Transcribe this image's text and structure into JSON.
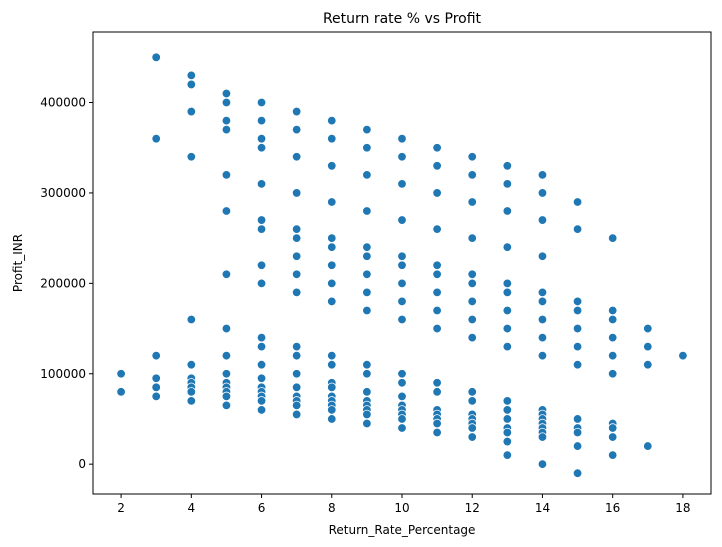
{
  "chart_data": {
    "type": "scatter",
    "title": "Return rate % vs Profit",
    "xlabel": "Return_Rate_Percentage",
    "ylabel": "Profit_INR",
    "xlim": [
      1.2,
      18.8
    ],
    "ylim": [
      -33000,
      478000
    ],
    "xticks": [
      2,
      4,
      6,
      8,
      10,
      12,
      14,
      16,
      18
    ],
    "yticks": [
      0,
      100000,
      200000,
      300000,
      400000
    ],
    "grid": false,
    "marker_color": "#1f77b4",
    "points": [
      [
        2,
        100000
      ],
      [
        2,
        80000
      ],
      [
        3,
        450000
      ],
      [
        3,
        360000
      ],
      [
        3,
        120000
      ],
      [
        3,
        95000
      ],
      [
        3,
        85000
      ],
      [
        3,
        75000
      ],
      [
        4,
        430000
      ],
      [
        4,
        420000
      ],
      [
        4,
        390000
      ],
      [
        4,
        340000
      ],
      [
        4,
        160000
      ],
      [
        4,
        110000
      ],
      [
        4,
        95000
      ],
      [
        4,
        90000
      ],
      [
        4,
        85000
      ],
      [
        4,
        80000
      ],
      [
        4,
        70000
      ],
      [
        5,
        410000
      ],
      [
        5,
        400000
      ],
      [
        5,
        380000
      ],
      [
        5,
        370000
      ],
      [
        5,
        320000
      ],
      [
        5,
        280000
      ],
      [
        5,
        210000
      ],
      [
        5,
        150000
      ],
      [
        5,
        120000
      ],
      [
        5,
        100000
      ],
      [
        5,
        90000
      ],
      [
        5,
        85000
      ],
      [
        5,
        80000
      ],
      [
        5,
        75000
      ],
      [
        5,
        65000
      ],
      [
        6,
        400000
      ],
      [
        6,
        380000
      ],
      [
        6,
        360000
      ],
      [
        6,
        350000
      ],
      [
        6,
        310000
      ],
      [
        6,
        270000
      ],
      [
        6,
        260000
      ],
      [
        6,
        220000
      ],
      [
        6,
        200000
      ],
      [
        6,
        140000
      ],
      [
        6,
        130000
      ],
      [
        6,
        110000
      ],
      [
        6,
        95000
      ],
      [
        6,
        85000
      ],
      [
        6,
        80000
      ],
      [
        6,
        75000
      ],
      [
        6,
        70000
      ],
      [
        6,
        60000
      ],
      [
        7,
        390000
      ],
      [
        7,
        370000
      ],
      [
        7,
        340000
      ],
      [
        7,
        300000
      ],
      [
        7,
        260000
      ],
      [
        7,
        250000
      ],
      [
        7,
        230000
      ],
      [
        7,
        210000
      ],
      [
        7,
        190000
      ],
      [
        7,
        130000
      ],
      [
        7,
        120000
      ],
      [
        7,
        100000
      ],
      [
        7,
        85000
      ],
      [
        7,
        75000
      ],
      [
        7,
        70000
      ],
      [
        7,
        65000
      ],
      [
        7,
        55000
      ],
      [
        8,
        380000
      ],
      [
        8,
        360000
      ],
      [
        8,
        330000
      ],
      [
        8,
        290000
      ],
      [
        8,
        250000
      ],
      [
        8,
        240000
      ],
      [
        8,
        220000
      ],
      [
        8,
        200000
      ],
      [
        8,
        180000
      ],
      [
        8,
        120000
      ],
      [
        8,
        110000
      ],
      [
        8,
        90000
      ],
      [
        8,
        85000
      ],
      [
        8,
        75000
      ],
      [
        8,
        70000
      ],
      [
        8,
        65000
      ],
      [
        8,
        60000
      ],
      [
        8,
        50000
      ],
      [
        9,
        370000
      ],
      [
        9,
        350000
      ],
      [
        9,
        320000
      ],
      [
        9,
        280000
      ],
      [
        9,
        240000
      ],
      [
        9,
        230000
      ],
      [
        9,
        210000
      ],
      [
        9,
        190000
      ],
      [
        9,
        170000
      ],
      [
        9,
        110000
      ],
      [
        9,
        100000
      ],
      [
        9,
        80000
      ],
      [
        9,
        70000
      ],
      [
        9,
        65000
      ],
      [
        9,
        60000
      ],
      [
        9,
        55000
      ],
      [
        9,
        45000
      ],
      [
        10,
        360000
      ],
      [
        10,
        340000
      ],
      [
        10,
        310000
      ],
      [
        10,
        270000
      ],
      [
        10,
        230000
      ],
      [
        10,
        220000
      ],
      [
        10,
        200000
      ],
      [
        10,
        180000
      ],
      [
        10,
        160000
      ],
      [
        10,
        100000
      ],
      [
        10,
        90000
      ],
      [
        10,
        75000
      ],
      [
        10,
        65000
      ],
      [
        10,
        60000
      ],
      [
        10,
        55000
      ],
      [
        10,
        50000
      ],
      [
        10,
        40000
      ],
      [
        11,
        350000
      ],
      [
        11,
        330000
      ],
      [
        11,
        300000
      ],
      [
        11,
        260000
      ],
      [
        11,
        220000
      ],
      [
        11,
        210000
      ],
      [
        11,
        190000
      ],
      [
        11,
        170000
      ],
      [
        11,
        150000
      ],
      [
        11,
        90000
      ],
      [
        11,
        80000
      ],
      [
        11,
        60000
      ],
      [
        11,
        55000
      ],
      [
        11,
        50000
      ],
      [
        11,
        45000
      ],
      [
        11,
        35000
      ],
      [
        12,
        340000
      ],
      [
        12,
        320000
      ],
      [
        12,
        290000
      ],
      [
        12,
        250000
      ],
      [
        12,
        210000
      ],
      [
        12,
        200000
      ],
      [
        12,
        180000
      ],
      [
        12,
        160000
      ],
      [
        12,
        140000
      ],
      [
        12,
        80000
      ],
      [
        12,
        70000
      ],
      [
        12,
        55000
      ],
      [
        12,
        50000
      ],
      [
        12,
        45000
      ],
      [
        12,
        40000
      ],
      [
        12,
        30000
      ],
      [
        13,
        330000
      ],
      [
        13,
        310000
      ],
      [
        13,
        280000
      ],
      [
        13,
        240000
      ],
      [
        13,
        200000
      ],
      [
        13,
        190000
      ],
      [
        13,
        170000
      ],
      [
        13,
        150000
      ],
      [
        13,
        130000
      ],
      [
        13,
        70000
      ],
      [
        13,
        60000
      ],
      [
        13,
        50000
      ],
      [
        13,
        40000
      ],
      [
        13,
        35000
      ],
      [
        13,
        25000
      ],
      [
        13,
        10000
      ],
      [
        14,
        320000
      ],
      [
        14,
        300000
      ],
      [
        14,
        270000
      ],
      [
        14,
        230000
      ],
      [
        14,
        190000
      ],
      [
        14,
        180000
      ],
      [
        14,
        160000
      ],
      [
        14,
        140000
      ],
      [
        14,
        120000
      ],
      [
        14,
        60000
      ],
      [
        14,
        55000
      ],
      [
        14,
        50000
      ],
      [
        14,
        45000
      ],
      [
        14,
        40000
      ],
      [
        14,
        35000
      ],
      [
        14,
        30000
      ],
      [
        14,
        0
      ],
      [
        15,
        290000
      ],
      [
        15,
        260000
      ],
      [
        15,
        180000
      ],
      [
        15,
        170000
      ],
      [
        15,
        150000
      ],
      [
        15,
        130000
      ],
      [
        15,
        110000
      ],
      [
        15,
        50000
      ],
      [
        15,
        40000
      ],
      [
        15,
        35000
      ],
      [
        15,
        20000
      ],
      [
        15,
        -10000
      ],
      [
        16,
        250000
      ],
      [
        16,
        170000
      ],
      [
        16,
        160000
      ],
      [
        16,
        140000
      ],
      [
        16,
        120000
      ],
      [
        16,
        100000
      ],
      [
        16,
        45000
      ],
      [
        16,
        40000
      ],
      [
        16,
        30000
      ],
      [
        16,
        10000
      ],
      [
        17,
        150000
      ],
      [
        17,
        130000
      ],
      [
        17,
        110000
      ],
      [
        17,
        20000
      ],
      [
        18,
        120000
      ]
    ]
  }
}
